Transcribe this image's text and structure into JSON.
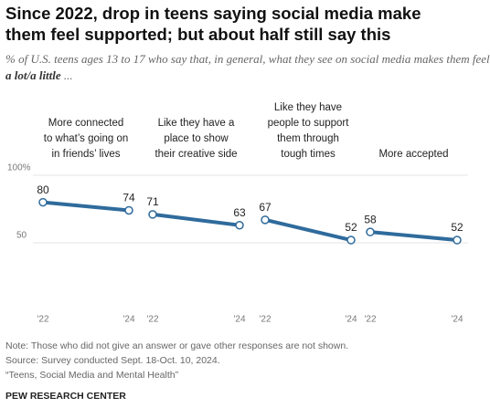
{
  "chart_data": {
    "type": "line",
    "title": "Since 2022, drop in teens saying social media make them feel supported; but about half still say this",
    "subtitle": [
      "% of U.S. teens ages 13 to 17 who say that, in general, what they see on social media makes them feel ",
      "a lot/a little",
      " ..."
    ],
    "color": "#2f6b9c",
    "ylim": [
      0,
      100
    ],
    "yticks": [
      {
        "value": 100,
        "label": "100%"
      },
      50
    ],
    "grid": true,
    "panels": [
      {
        "title": [
          "More connected",
          "to what’s going on",
          "in friends’ lives"
        ],
        "x": [
          "'22",
          "'24"
        ],
        "values": [
          80,
          74
        ]
      },
      {
        "title": [
          "Like they have a",
          "place to show",
          "their creative side"
        ],
        "x": [
          "'22",
          "'24"
        ],
        "values": [
          71,
          63
        ]
      },
      {
        "title": [
          "Like they have",
          "people to support",
          "them through",
          "tough times"
        ],
        "x": [
          "'22",
          "'24"
        ],
        "values": [
          67,
          52
        ]
      },
      {
        "title": [
          "More accepted"
        ],
        "x": [
          "'22",
          "'24"
        ],
        "values": [
          58,
          52
        ]
      }
    ],
    "notes": [
      "Note: Those who did not give an answer or gave other responses are not shown.",
      "Source: Survey conducted Sept. 18-Oct. 10, 2024.",
      "“Teens, Social Media and Mental Health”"
    ],
    "footer": "PEW RESEARCH CENTER"
  }
}
